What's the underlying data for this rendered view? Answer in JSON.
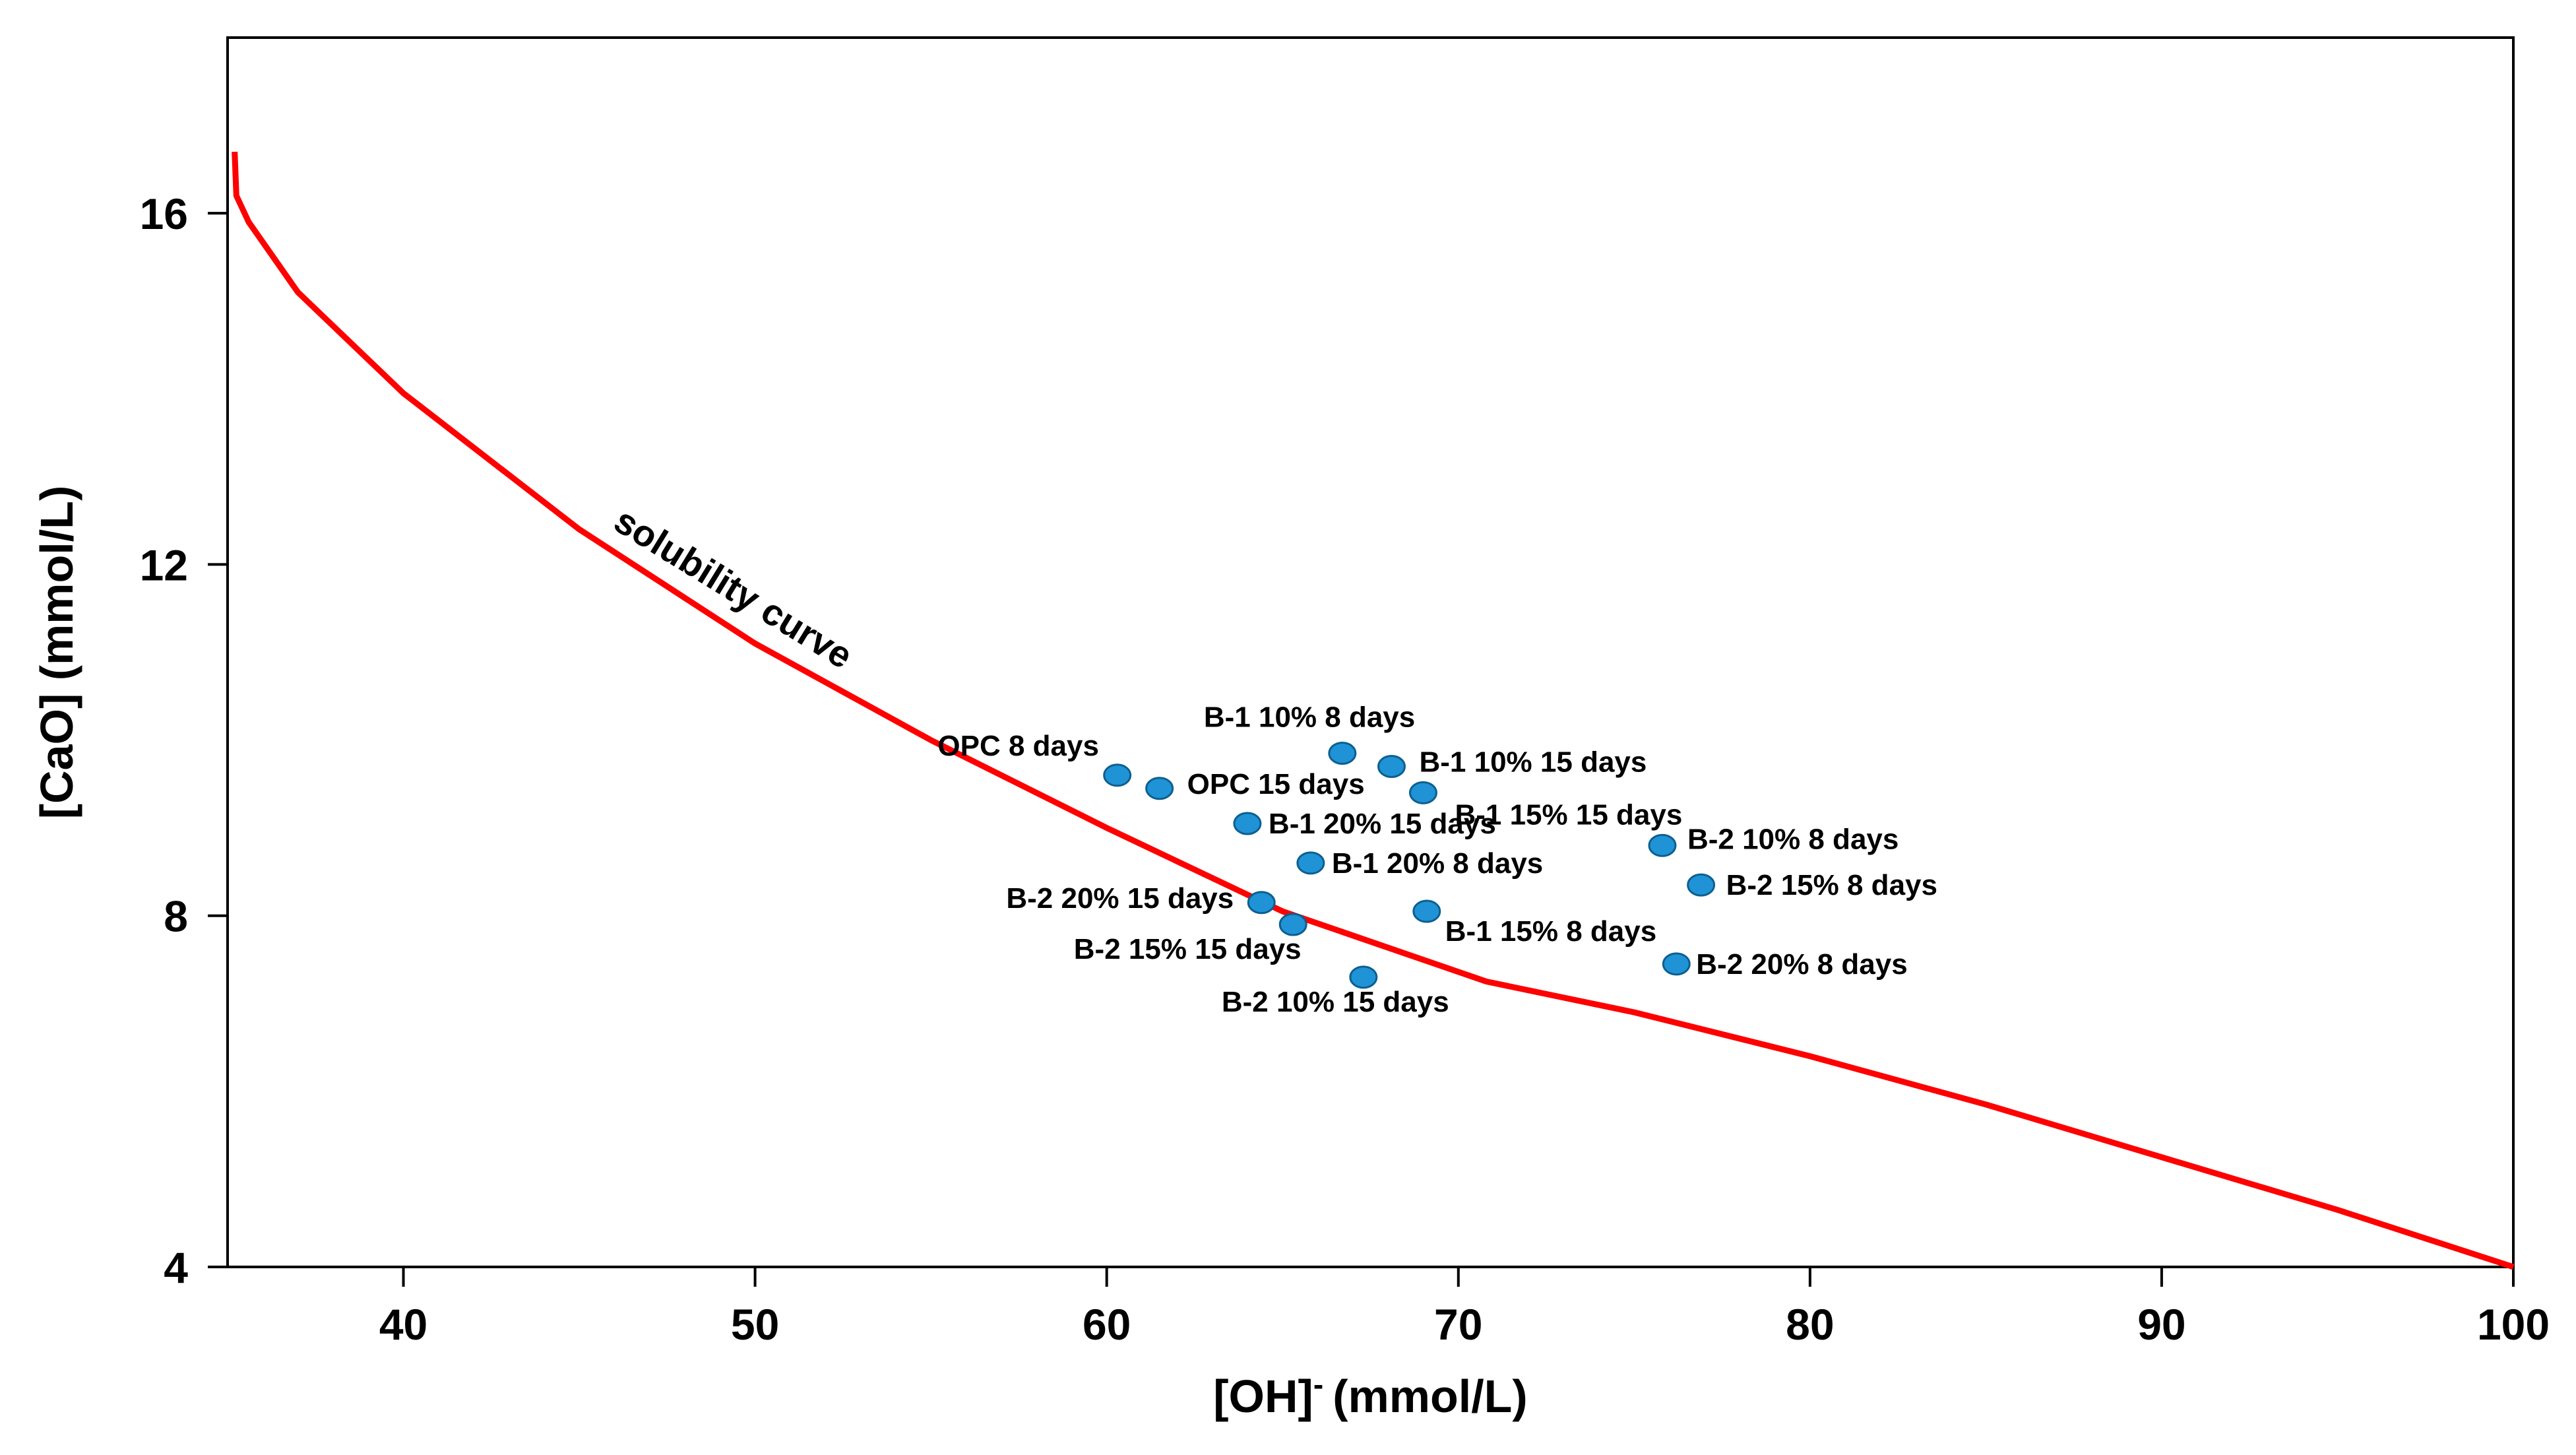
{
  "chart_data": {
    "type": "scatter",
    "title": "",
    "xlabel": "[OH]",
    "xlabel_superscript": "-",
    "xlabel_unit": "(mmol/L)",
    "ylabel": "[CaO] (mmol/L)",
    "xlim": [
      35,
      100
    ],
    "ylim": [
      4,
      18
    ],
    "x_ticks": [
      40,
      50,
      60,
      70,
      80,
      90,
      100
    ],
    "y_ticks": [
      4,
      8,
      12,
      16
    ],
    "grid": false,
    "legend": "none",
    "colors": {
      "curve": "#ff0000",
      "points": "#1f93d6",
      "point_edge": "#0d5f8f",
      "axis": "#000000"
    },
    "curve": {
      "name": "solubility curve",
      "points": [
        [
          35.2,
          16.7
        ],
        [
          35.25,
          16.2
        ],
        [
          35.6,
          15.9
        ],
        [
          37,
          15.1
        ],
        [
          40,
          13.95
        ],
        [
          45,
          12.4
        ],
        [
          50,
          11.1
        ],
        [
          55,
          10.0
        ],
        [
          60,
          9.0
        ],
        [
          65,
          8.05
        ],
        [
          70.8,
          7.25
        ],
        [
          75,
          6.9
        ],
        [
          80,
          6.4
        ],
        [
          85,
          5.85
        ],
        [
          90,
          5.25
        ],
        [
          95,
          4.65
        ],
        [
          100,
          4.0
        ]
      ]
    },
    "points": [
      {
        "label": "OPC 8 days",
        "x": 60.3,
        "y": 9.6
      },
      {
        "label": "OPC 15 days",
        "x": 61.5,
        "y": 9.45
      },
      {
        "label": "B-1 10% 8 days",
        "x": 66.7,
        "y": 9.85
      },
      {
        "label": "B-1 10% 15 days",
        "x": 68.1,
        "y": 9.7
      },
      {
        "label": "B-1 15% 15 days",
        "x": 69.0,
        "y": 9.4
      },
      {
        "label": "B-1 20% 15 days",
        "x": 64.0,
        "y": 9.05
      },
      {
        "label": "B-1 20% 8 days",
        "x": 65.8,
        "y": 8.6
      },
      {
        "label": "B-1 15% 8 days",
        "x": 69.1,
        "y": 8.05
      },
      {
        "label": "B-2 20% 15 days",
        "x": 64.4,
        "y": 8.15
      },
      {
        "label": "B-2 15%  15 days",
        "x": 65.3,
        "y": 7.9
      },
      {
        "label": "B-2 10%  15 days",
        "x": 67.3,
        "y": 7.3
      },
      {
        "label": "B-2 10% 8 days",
        "x": 75.8,
        "y": 8.8
      },
      {
        "label": "B-2 15% 8 days",
        "x": 76.9,
        "y": 8.35
      },
      {
        "label": "B-2 20%  8 days",
        "x": 76.2,
        "y": 7.45
      }
    ]
  }
}
